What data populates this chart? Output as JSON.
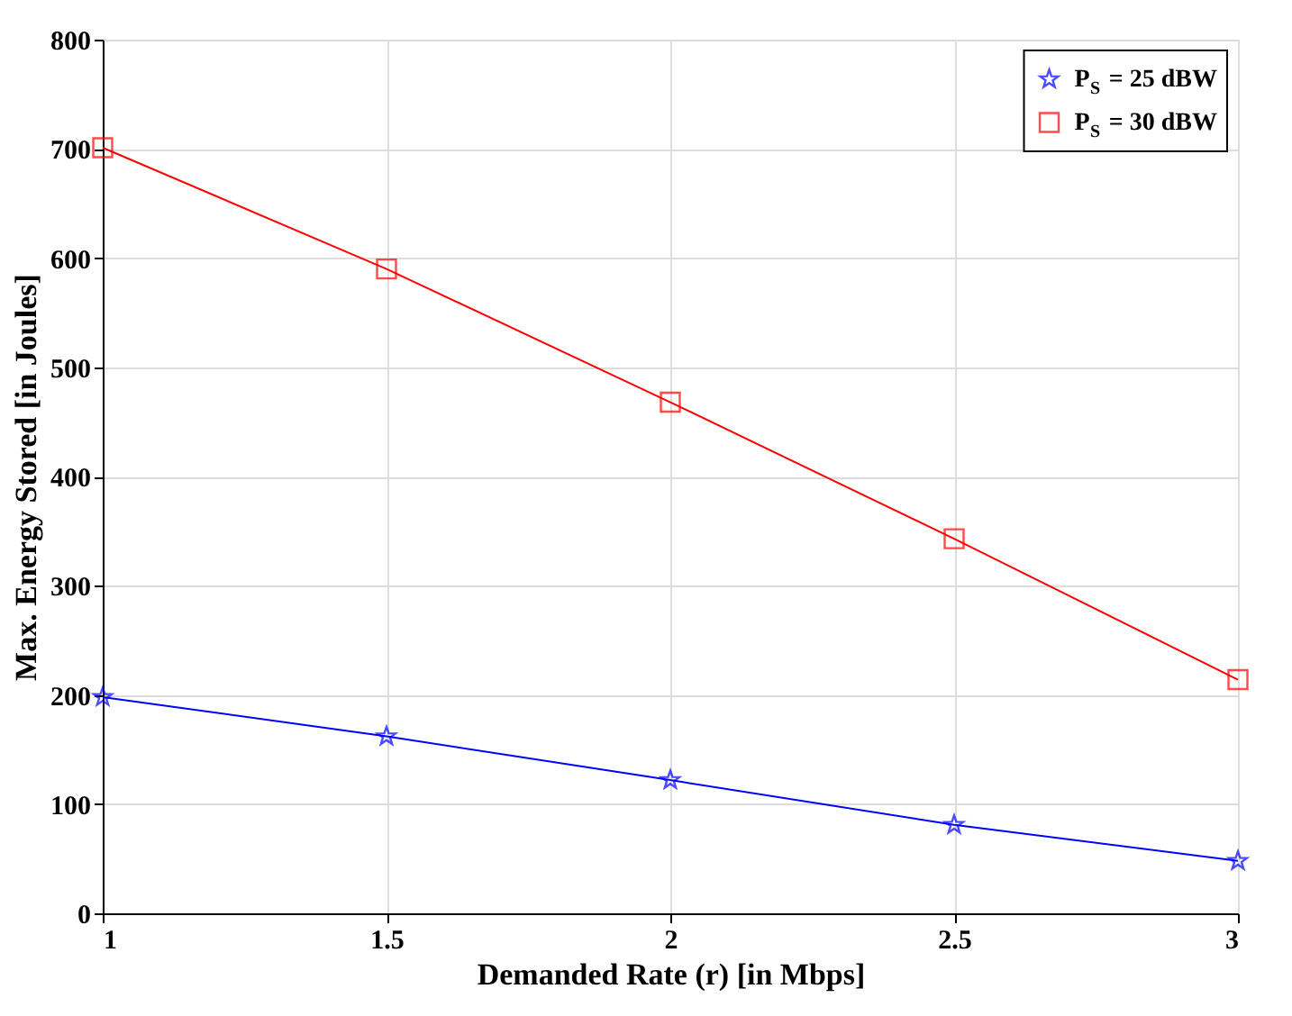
{
  "chart_data": {
    "type": "line",
    "xlabel": "Demanded Rate (r) [in Mbps]",
    "ylabel": "Max. Energy Stored [in Joules]",
    "x": [
      1,
      1.5,
      2,
      2.5,
      3
    ],
    "series": [
      {
        "name": "P$_{S}$ = 25 dBW",
        "color": "#0000ff",
        "marker": "star",
        "values": [
          198,
          162,
          122,
          81,
          48
        ]
      },
      {
        "name": "P$_{S}$ = 30 dBW",
        "color": "#ff0000",
        "marker": "square",
        "values": [
          701,
          590,
          468,
          343,
          214
        ]
      }
    ],
    "xlim": [
      1,
      3
    ],
    "xticks": [
      {
        "value": 1,
        "label": "1"
      },
      1.5,
      {
        "value": 2,
        "label": "2"
      },
      2.5,
      {
        "value": 3,
        "label": "3"
      }
    ],
    "ylim": [
      0,
      800
    ],
    "yticks": [
      0,
      100,
      200,
      300,
      400,
      500,
      600,
      700,
      800
    ],
    "grid": true,
    "legend": "top right",
    "line_style": "solid"
  }
}
